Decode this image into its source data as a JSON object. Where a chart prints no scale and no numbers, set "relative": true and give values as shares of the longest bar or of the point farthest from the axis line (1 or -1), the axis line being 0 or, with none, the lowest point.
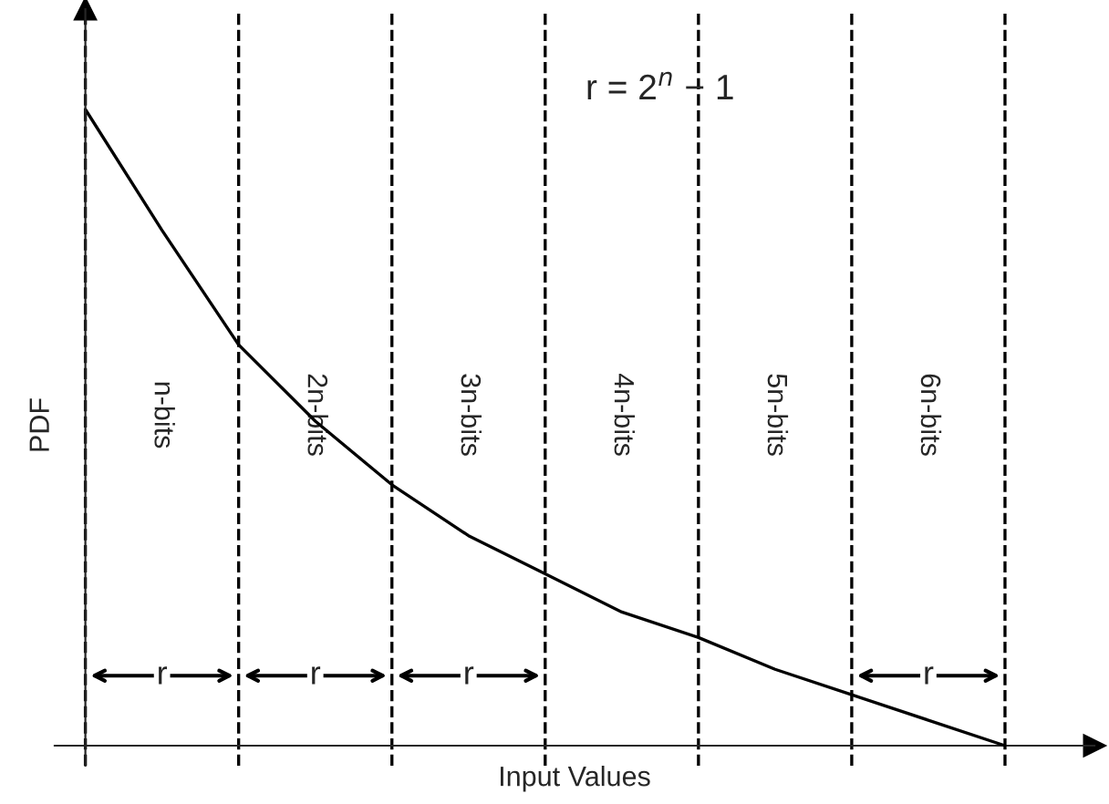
{
  "chart_data": {
    "type": "line",
    "relative": true,
    "xlabel": "Input Values",
    "ylabel": "PDF",
    "categories": [
      null,
      null,
      null,
      null,
      null,
      null,
      null,
      null,
      null,
      null,
      null,
      null,
      null
    ],
    "series": [
      {
        "color": "#000000",
        "values": [
          1.0,
          0.81,
          0.63,
          0.51,
          0.41,
          0.33,
          0.27,
          0.21,
          0.17,
          0.12,
          0.08,
          0.04,
          0.0
        ]
      }
    ],
    "annotations": [
      "r = 2$^{n}$ − 1",
      "n-bits",
      "2n-bits",
      "3n-bits",
      "4n-bits",
      "5n-bits",
      "6n-bits",
      "r",
      "r",
      "r",
      "r"
    ],
    "grid": "x",
    "marker": "none",
    "line_style": "solid"
  }
}
